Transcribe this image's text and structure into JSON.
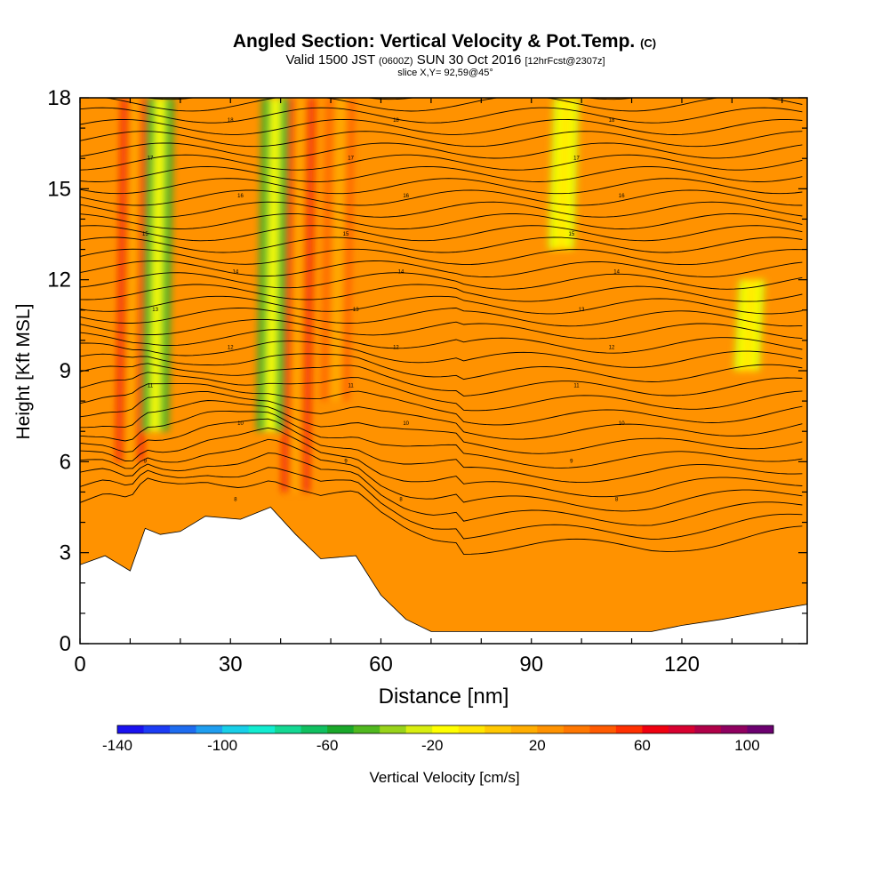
{
  "title": {
    "main": "Angled Section: Vertical Velocity & Pot.Temp.",
    "main_unit": "(C)",
    "valid_prefix": "Valid 1500 JST",
    "valid_utc": "(0600Z)",
    "valid_date": "SUN 30 Oct 2016",
    "forecast": "[12hrFcst@2307z]",
    "slice": "slice X,Y= 92,59@45°"
  },
  "chart_data": {
    "type": "heatmap",
    "xlabel": "Distance [nm]",
    "ylabel": "Height [Kft MSL]",
    "xlim": [
      0,
      145
    ],
    "ylim": [
      0,
      18
    ],
    "x_ticks": [
      0,
      30,
      60,
      90,
      120
    ],
    "y_ticks": [
      0,
      3,
      6,
      9,
      12,
      15,
      18
    ],
    "colorbar": {
      "label": "Vertical Velocity [cm/s]",
      "range": [
        -140,
        110
      ],
      "step": 10,
      "tick_labels": [
        -140,
        -100,
        -60,
        -20,
        20,
        60,
        100
      ],
      "colors": [
        "#1a12f0",
        "#1c3cf5",
        "#1e6cf0",
        "#1f9ef0",
        "#18cfe8",
        "#12ecd0",
        "#14d893",
        "#10c060",
        "#1aa82a",
        "#50b81f",
        "#98d31a",
        "#d8ee10",
        "#ffff00",
        "#ffe600",
        "#ffc800",
        "#ffad00",
        "#ff9200",
        "#ff7700",
        "#ff5a00",
        "#ff3000",
        "#f00010",
        "#d80030",
        "#b00048",
        "#900060",
        "#6c0070"
      ]
    },
    "background_velocity_cm_s": 20,
    "terrain_kft": [
      [
        0,
        2.6
      ],
      [
        5,
        2.9
      ],
      [
        10,
        2.4
      ],
      [
        13,
        3.8
      ],
      [
        16,
        3.6
      ],
      [
        20,
        3.7
      ],
      [
        25,
        4.2
      ],
      [
        32,
        4.1
      ],
      [
        38,
        4.5
      ],
      [
        43,
        3.6
      ],
      [
        48,
        2.8
      ],
      [
        55,
        2.9
      ],
      [
        60,
        1.6
      ],
      [
        65,
        0.8
      ],
      [
        70,
        0.4
      ],
      [
        100,
        0.4
      ],
      [
        114,
        0.4
      ],
      [
        120,
        0.6
      ],
      [
        128,
        0.8
      ],
      [
        138,
        1.1
      ],
      [
        145,
        1.3
      ]
    ],
    "theta_contour_labels": [
      "18",
      "17",
      "16",
      "15",
      "14",
      "13",
      "12",
      "11",
      "10",
      "9",
      "8"
    ],
    "updraft_columns": [
      {
        "x_nm": 11,
        "peak_cm_s": 60,
        "top_kft": 18,
        "base_kft": 6
      },
      {
        "x_nm": 44,
        "peak_cm_s": 60,
        "top_kft": 18,
        "base_kft": 5
      },
      {
        "x_nm": 52,
        "peak_cm_s": 40,
        "top_kft": 18,
        "base_kft": 8
      }
    ],
    "downdraft_columns": [
      {
        "x_nm": 16,
        "peak_cm_s": -60,
        "top_kft": 18,
        "base_kft": 7
      },
      {
        "x_nm": 39,
        "peak_cm_s": -60,
        "top_kft": 18,
        "base_kft": 7
      },
      {
        "x_nm": 97,
        "peak_cm_s": -30,
        "top_kft": 18,
        "base_kft": 13
      },
      {
        "x_nm": 134,
        "peak_cm_s": -30,
        "top_kft": 12,
        "base_kft": 9
      }
    ]
  }
}
